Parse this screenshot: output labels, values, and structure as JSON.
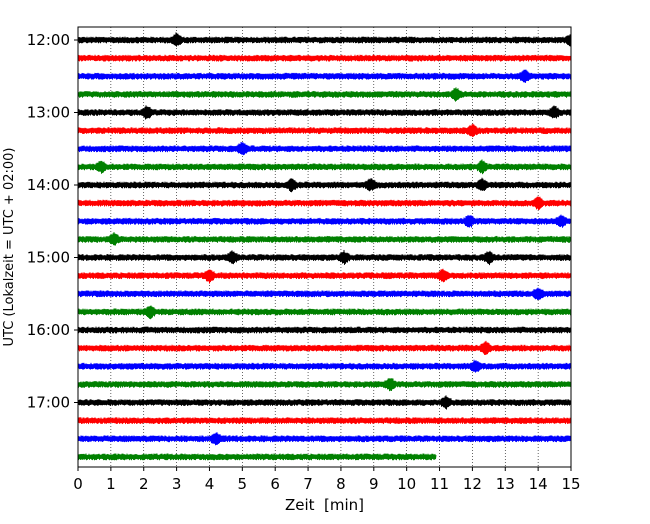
{
  "chart_data": {
    "type": "line",
    "subtype": "helicorder",
    "title": "",
    "xlabel": "Zeit  [min]",
    "ylabel": "UTC (Lokalzeit = UTC + 02:00)",
    "xlim": [
      0,
      15
    ],
    "x_ticks": [
      "0",
      "1",
      "2",
      "3",
      "4",
      "5",
      "6",
      "7",
      "8",
      "9",
      "10",
      "11",
      "12",
      "13",
      "14",
      "15"
    ],
    "y_ticks": [
      "12:00",
      "13:00",
      "14:00",
      "15:00",
      "16:00",
      "17:00"
    ],
    "grid": "vertical dotted lines at each minute",
    "colors": [
      "#000000",
      "#ff0000",
      "#0000ff",
      "#008000"
    ],
    "row_minutes": 15,
    "traces": [
      {
        "start": "12:00",
        "end_min": 15,
        "color": "#000000"
      },
      {
        "start": "12:15",
        "end_min": 15,
        "color": "#ff0000"
      },
      {
        "start": "12:30",
        "end_min": 15,
        "color": "#0000ff"
      },
      {
        "start": "12:45",
        "end_min": 15,
        "color": "#008000"
      },
      {
        "start": "13:00",
        "end_min": 15,
        "color": "#000000"
      },
      {
        "start": "13:15",
        "end_min": 15,
        "color": "#ff0000"
      },
      {
        "start": "13:30",
        "end_min": 15,
        "color": "#0000ff"
      },
      {
        "start": "13:45",
        "end_min": 15,
        "color": "#008000"
      },
      {
        "start": "14:00",
        "end_min": 15,
        "color": "#000000"
      },
      {
        "start": "14:15",
        "end_min": 15,
        "color": "#ff0000"
      },
      {
        "start": "14:30",
        "end_min": 15,
        "color": "#0000ff"
      },
      {
        "start": "14:45",
        "end_min": 15,
        "color": "#008000"
      },
      {
        "start": "15:00",
        "end_min": 15,
        "color": "#000000"
      },
      {
        "start": "15:15",
        "end_min": 15,
        "color": "#ff0000"
      },
      {
        "start": "15:30",
        "end_min": 15,
        "color": "#0000ff"
      },
      {
        "start": "15:45",
        "end_min": 15,
        "color": "#008000"
      },
      {
        "start": "16:00",
        "end_min": 15,
        "color": "#000000"
      },
      {
        "start": "16:15",
        "end_min": 15,
        "color": "#ff0000"
      },
      {
        "start": "16:30",
        "end_min": 15,
        "color": "#0000ff"
      },
      {
        "start": "16:45",
        "end_min": 15,
        "color": "#008000"
      },
      {
        "start": "17:00",
        "end_min": 15,
        "color": "#000000"
      },
      {
        "start": "17:15",
        "end_min": 15,
        "color": "#ff0000"
      },
      {
        "start": "17:30",
        "end_min": 15,
        "color": "#0000ff"
      },
      {
        "start": "17:45",
        "end_min": 10.9,
        "color": "#008000"
      }
    ],
    "events": [
      {
        "trace": "12:00",
        "x": 3.0
      },
      {
        "trace": "12:00",
        "x": 15.0
      },
      {
        "trace": "12:30",
        "x": 13.6
      },
      {
        "trace": "12:45",
        "x": 11.5
      },
      {
        "trace": "13:00",
        "x": 2.1
      },
      {
        "trace": "13:00",
        "x": 14.5
      },
      {
        "trace": "13:15",
        "x": 12.0
      },
      {
        "trace": "13:30",
        "x": 5.0
      },
      {
        "trace": "13:45",
        "x": 0.7
      },
      {
        "trace": "13:45",
        "x": 12.3
      },
      {
        "trace": "14:00",
        "x": 6.5
      },
      {
        "trace": "14:00",
        "x": 8.9
      },
      {
        "trace": "14:00",
        "x": 12.3
      },
      {
        "trace": "14:15",
        "x": 14.0
      },
      {
        "trace": "14:30",
        "x": 11.9
      },
      {
        "trace": "14:30",
        "x": 14.7
      },
      {
        "trace": "14:45",
        "x": 1.1
      },
      {
        "trace": "15:00",
        "x": 4.7
      },
      {
        "trace": "15:00",
        "x": 8.1
      },
      {
        "trace": "15:00",
        "x": 12.5
      },
      {
        "trace": "15:15",
        "x": 4.0
      },
      {
        "trace": "15:15",
        "x": 11.1
      },
      {
        "trace": "15:30",
        "x": 14.0
      },
      {
        "trace": "15:45",
        "x": 2.2
      },
      {
        "trace": "16:15",
        "x": 12.4
      },
      {
        "trace": "16:30",
        "x": 12.1
      },
      {
        "trace": "16:45",
        "x": 9.5
      },
      {
        "trace": "17:00",
        "x": 11.2
      },
      {
        "trace": "17:30",
        "x": 4.2
      }
    ]
  }
}
